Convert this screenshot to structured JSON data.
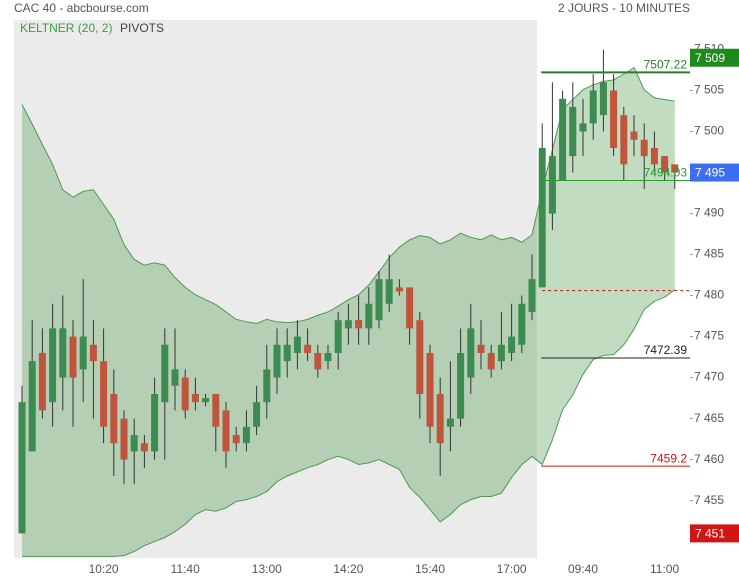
{
  "chart_data": {
    "type": "candlestick",
    "title": "CAC 40 - abcbourse.com",
    "subtitle": "2 JOURS - 10 MINUTES",
    "indicators": [
      "KELTNER (20, 2)",
      "PIVOTS"
    ],
    "categories": [
      null,
      null,
      null,
      null,
      null,
      null,
      null,
      null,
      "10:20",
      null,
      null,
      null,
      null,
      null,
      null,
      null,
      "11:40",
      null,
      null,
      null,
      null,
      null,
      null,
      null,
      "13:00",
      null,
      null,
      null,
      null,
      null,
      null,
      null,
      "14:20",
      null,
      null,
      null,
      null,
      null,
      null,
      null,
      "15:40",
      null,
      null,
      null,
      null,
      null,
      null,
      null,
      "17:00",
      null,
      null,
      null,
      null,
      null,
      null,
      "09:40",
      null,
      null,
      null,
      null,
      null,
      null,
      null,
      "11:00",
      null
    ],
    "open": [
      7451,
      7461,
      7473,
      7467,
      7470,
      7475,
      7471,
      7474,
      7472,
      7468,
      7465,
      7461,
      7462,
      7461,
      7467,
      7469,
      7470,
      7468,
      7467,
      7468,
      7466,
      7463,
      7462,
      7464,
      7467,
      7470,
      7472,
      7473,
      7474,
      7473,
      7472,
      7473,
      7476,
      7477,
      7476,
      7477,
      7479,
      7481,
      7481,
      7477,
      7473,
      7468,
      7464,
      7465,
      7470,
      7474,
      7473,
      7472,
      7473,
      7474,
      7478,
      7481,
      7490,
      7494,
      7497,
      7500,
      7501,
      7502,
      7505,
      7502,
      7500,
      7499,
      7498,
      7497,
      7496
    ],
    "high": [
      7469,
      7477,
      7476,
      7479,
      7480,
      7477,
      7482,
      7477,
      7476,
      7471,
      7466,
      7465,
      7463,
      7470,
      7476,
      7476,
      7471,
      7470,
      7468,
      7468,
      7467,
      7464,
      7466,
      7469,
      7474,
      7476,
      7476,
      7477,
      7476,
      7474,
      7474,
      7478,
      7479,
      7480,
      7481,
      7483,
      7485,
      7482,
      7481,
      7478,
      7474,
      7470,
      7472,
      7476,
      7479,
      7477,
      7474,
      7478,
      7479,
      7480,
      7485,
      7501,
      7506,
      7505,
      7506,
      7504,
      7507,
      7510,
      7507,
      7503,
      7502,
      7501,
      7500,
      7497,
      7496
    ],
    "low": [
      7451,
      7461,
      7465,
      7464,
      7466,
      7464,
      7467,
      7465,
      7462,
      7458,
      7457,
      7457,
      7459,
      7460,
      7460,
      7466,
      7465,
      7466,
      7466.5,
      7461,
      7459,
      7461,
      7461,
      7463,
      7465,
      7468,
      7470,
      7471,
      7472,
      7470,
      7471,
      7471,
      7474,
      7474,
      7474,
      7476,
      7478,
      7480,
      7474,
      7465,
      7462,
      7458,
      7461,
      7464,
      7468,
      7471,
      7470,
      7471,
      7472,
      7473,
      7477,
      7481,
      7488,
      7494,
      7495,
      7497,
      7499,
      7500,
      7497,
      7494,
      7497,
      7493,
      7495,
      7494,
      7493
    ],
    "close": [
      7467,
      7472,
      7466,
      7476,
      7476,
      7470,
      7475,
      7472,
      7464,
      7462,
      7460,
      7463,
      7461,
      7468,
      7474,
      7471,
      7466,
      7467,
      7467.5,
      7464,
      7461,
      7462,
      7464,
      7467,
      7471,
      7474,
      7474,
      7475,
      7473,
      7471,
      7473,
      7477,
      7477,
      7476,
      7479,
      7482,
      7482,
      7480.5,
      7476,
      7468,
      7464,
      7462,
      7465,
      7473,
      7476,
      7473,
      7471,
      7474,
      7475,
      7479,
      7482,
      7498,
      7497,
      7504,
      7503,
      7501,
      7505,
      7506,
      7498,
      7496,
      7499,
      7497,
      7496,
      7495,
      7495
    ],
    "up_color": "#3d8b50",
    "down_color": "#c0553d",
    "keltner_upper": [
      7503.3,
      7500.9,
      7498.4,
      7496.0,
      7492.9,
      7492.0,
      7492.7,
      7492.9,
      7491.1,
      7489.3,
      7486.2,
      7484.4,
      7483.7,
      7484.0,
      7483.7,
      7482.2,
      7481.0,
      7480.1,
      7479.5,
      7478.9,
      7478.0,
      7477.1,
      7476.8,
      7476.6,
      7477.1,
      7476.8,
      7476.7,
      7476.8,
      7477.1,
      7477.6,
      7478.0,
      7478.7,
      7479.5,
      7480.1,
      7481.3,
      7482.9,
      7484.6,
      7485.9,
      7486.8,
      7487.3,
      7487.1,
      7486.3,
      7486.8,
      7487.6,
      7487.1,
      7486.8,
      7487.4,
      7486.8,
      7487.1,
      7486.5,
      7487.4,
      7492.9,
      7497.8,
      7502.7,
      7503.9,
      7505.1,
      7505.7,
      7506.1,
      7506.3,
      7507.0,
      7507.8,
      7505.1,
      7504.1,
      7503.9,
      7503.7
    ],
    "keltner_lower": [
      7448.2,
      7448.2,
      7448.2,
      7448.2,
      7448.2,
      7448.2,
      7448.2,
      7448.2,
      7448.2,
      7448.2,
      7448.3,
      7448.8,
      7449.5,
      7450.0,
      7450.5,
      7451.2,
      7452.1,
      7453.3,
      7453.9,
      7453.7,
      7454.1,
      7454.9,
      7455.1,
      7455.5,
      7456.1,
      7457.3,
      7458.0,
      7458.5,
      7459.0,
      7459.4,
      7460.0,
      7460.4,
      7460.0,
      7459.4,
      7459.6,
      7460.0,
      7459.4,
      7458.8,
      7456.6,
      7455.4,
      7453.9,
      7452.4,
      7453.3,
      7454.5,
      7455.1,
      7455.5,
      7455.5,
      7455.9,
      7457.8,
      7459.4,
      7460.4,
      7459.4,
      7462.4,
      7466.1,
      7467.9,
      7470.4,
      7472.2,
      7472.7,
      7472.8,
      7474.0,
      7475.9,
      7478.3,
      7479.3,
      7479.8,
      7480.7
    ],
    "band_color": "#4f9a4f",
    "levels": [
      {
        "value": 7507.22,
        "color": "#2a7d2a"
      },
      {
        "value": 7494.03,
        "color": "#2a9d2a"
      },
      {
        "value": 7472.39,
        "color": "#222222"
      },
      {
        "value": 7459.2,
        "color": "#cc1111"
      }
    ],
    "dashed_line": {
      "value": 7480.6,
      "color": "#cc1111"
    },
    "badges": [
      {
        "value": 7509,
        "label": "7 509",
        "color": "#1e8a1e"
      },
      {
        "value": 7495,
        "label": "7 495",
        "color": "#3b6ff0"
      },
      {
        "value": 7451,
        "label": "7 451",
        "color": "#d01515"
      }
    ],
    "ylim": [
      7448,
      7513.6
    ],
    "yticks": [
      {
        "value": 7455,
        "label": "7 455"
      },
      {
        "value": 7460,
        "label": "7 460"
      },
      {
        "value": 7465,
        "label": "7 465"
      },
      {
        "value": 7470,
        "label": "7 470"
      },
      {
        "value": 7475,
        "label": "7 475"
      },
      {
        "value": 7480,
        "label": "7 480"
      },
      {
        "value": 7485,
        "label": "7 485"
      },
      {
        "value": 7490,
        "label": "7 490"
      },
      {
        "value": 7495,
        "label": "7 495"
      },
      {
        "value": 7500,
        "label": "7 500"
      },
      {
        "value": 7505,
        "label": "7 505"
      },
      {
        "value": 7510,
        "label": "7 510"
      }
    ]
  }
}
